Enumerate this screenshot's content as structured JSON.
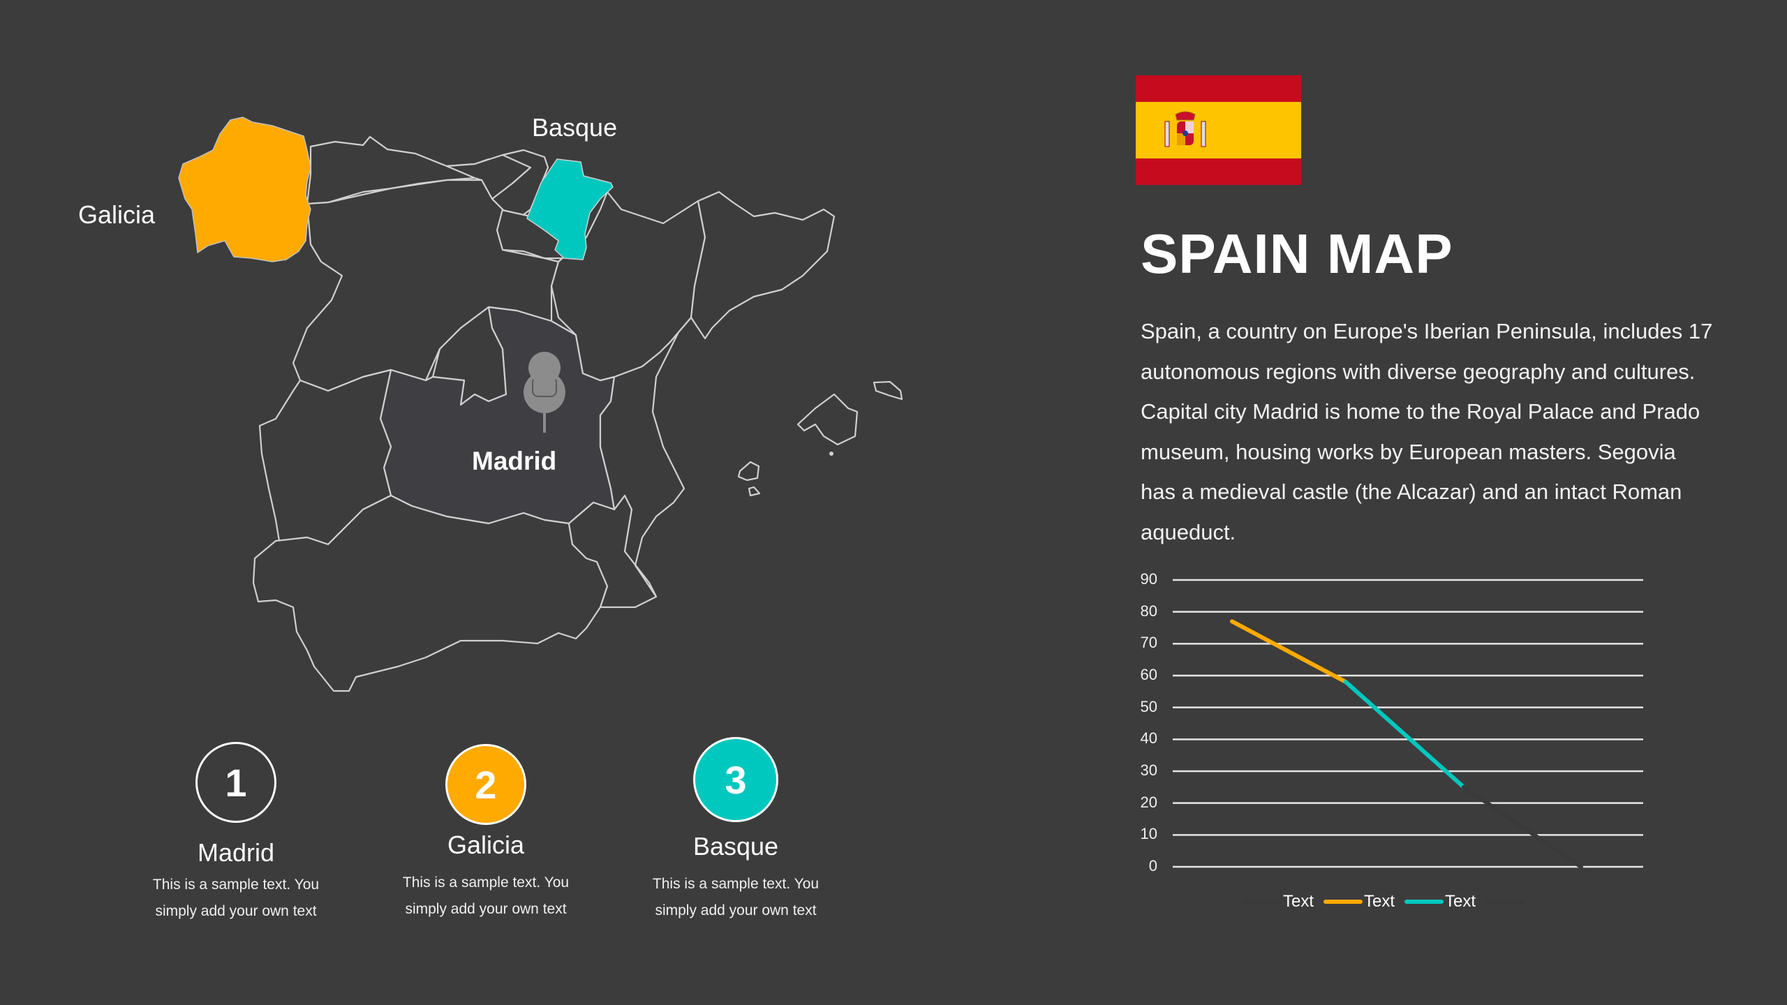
{
  "slide": {
    "title": "SPAIN MAP",
    "description": "Spain, a country on Europe's Iberian Peninsula, includes 17 autonomous regions with diverse geography and cultures. Capital city Madrid is home to the Royal Palace and Prado museum, housing works by European masters. Segovia has a medieval castle (the Alcazar) and an intact Roman aqueduct."
  },
  "colors": {
    "background": "#3c3c3c",
    "orange": "#ffaa00",
    "teal": "#00c8be",
    "outline": "#d0d0d0",
    "pin": "#8c8c8c",
    "flag_red": "#c60b1e",
    "flag_yellow": "#ffc400"
  },
  "map": {
    "labels": {
      "galicia": "Galicia",
      "basque": "Basque",
      "madrid": "Madrid"
    },
    "highlighted_regions": [
      {
        "name": "Galicia",
        "color": "#ffaa00"
      },
      {
        "name": "Basque",
        "color": "#00c8be"
      }
    ],
    "pin_icon": "pushpin-icon"
  },
  "flag": {
    "icon": "spain-flag-icon"
  },
  "cards": [
    {
      "number": "1",
      "title": "Madrid",
      "text_line1": "This is a sample text. You",
      "text_line2": "simply add your own text",
      "fill": "transparent"
    },
    {
      "number": "2",
      "title": "Galicia",
      "text_line1": "This is a sample text. You",
      "text_line2": "simply add your own text",
      "fill": "#ffaa00"
    },
    {
      "number": "3",
      "title": "Basque",
      "text_line1": "This is a sample text. You",
      "text_line2": "simply add your own text",
      "fill": "#00c8be"
    }
  ],
  "chart_data": {
    "type": "line",
    "title": "",
    "xlabel": "",
    "ylabel": "",
    "ylim": [
      0,
      90
    ],
    "yticks": [
      "0",
      "10",
      "20",
      "30",
      "40",
      "50",
      "60",
      "70",
      "80",
      "90"
    ],
    "grid": true,
    "legend_position": "bottom",
    "x": [
      1,
      2,
      3,
      4
    ],
    "values": [
      77,
      58,
      25,
      0
    ],
    "segments": [
      {
        "name": "Text",
        "color": "#ffaa00",
        "from": [
          1,
          77
        ],
        "to": [
          2,
          58
        ]
      },
      {
        "name": "Text",
        "color": "#00c8be",
        "from": [
          2,
          58
        ],
        "to": [
          3,
          25
        ]
      },
      {
        "name": "",
        "color": "#3a3a3a",
        "from": [
          3,
          25
        ],
        "to": [
          4,
          0
        ]
      }
    ],
    "legend": [
      {
        "label": "Text",
        "color": "#3a3a3a"
      },
      {
        "label": "Text",
        "color": "#ffaa00"
      },
      {
        "label": "Text",
        "color": "#00c8be"
      },
      {
        "label": "",
        "color": "#3a3a3a"
      }
    ]
  }
}
